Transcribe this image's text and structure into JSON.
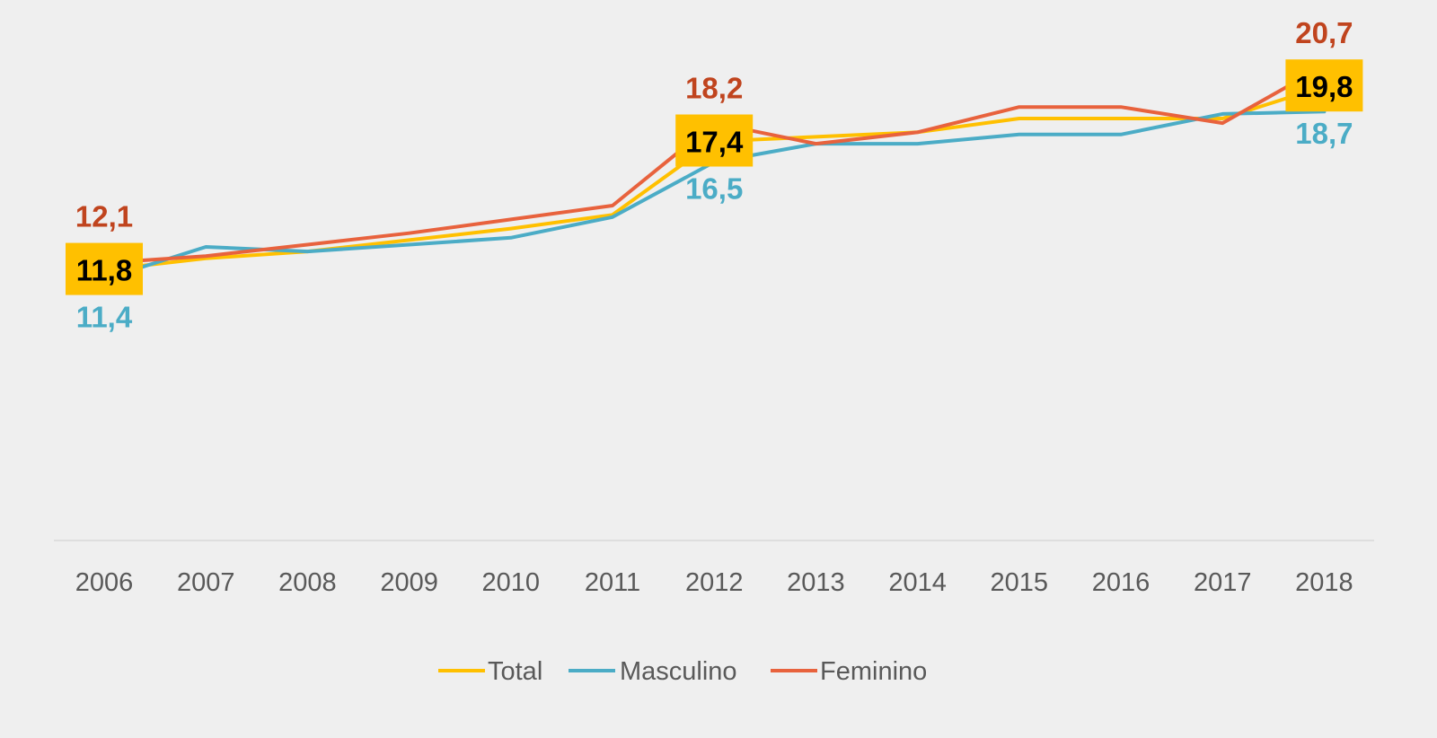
{
  "chart_data": {
    "type": "line",
    "categories": [
      "2006",
      "2007",
      "2008",
      "2009",
      "2010",
      "2011",
      "2012",
      "2013",
      "2014",
      "2015",
      "2016",
      "2017",
      "2018"
    ],
    "series": [
      {
        "name": "Total",
        "color": "#FFC000",
        "values": [
          11.8,
          12.3,
          12.6,
          13.1,
          13.6,
          14.2,
          17.4,
          17.6,
          17.8,
          18.4,
          18.4,
          18.4,
          19.8
        ]
      },
      {
        "name": "Masculino",
        "color": "#4BACC6",
        "values": [
          11.4,
          12.8,
          12.6,
          12.9,
          13.2,
          14.1,
          16.5,
          17.3,
          17.3,
          17.7,
          17.7,
          18.6,
          18.7
        ]
      },
      {
        "name": "Feminino",
        "color": "#E8623D",
        "values": [
          12.1,
          12.4,
          12.9,
          13.4,
          14.0,
          14.6,
          18.2,
          17.3,
          17.8,
          18.9,
          18.9,
          18.2,
          20.7
        ]
      }
    ],
    "data_labels": [
      {
        "category": "2006",
        "total": "11,8",
        "masculino": "11,4",
        "feminino": "12,1"
      },
      {
        "category": "2012",
        "total": "17,4",
        "masculino": "16,5",
        "feminino": "18,2"
      },
      {
        "category": "2018",
        "total": "19,8",
        "masculino": "18,7",
        "feminino": "20,7"
      }
    ],
    "label_colors": {
      "total_text": "#000000",
      "total_bg": "#FFC000",
      "masculino": "#4BACC6",
      "feminino": "#C0441E"
    },
    "ylim": [
      0,
      22
    ],
    "grid": false,
    "legend_position": "bottom",
    "axis_color": "#D9D9D9"
  }
}
